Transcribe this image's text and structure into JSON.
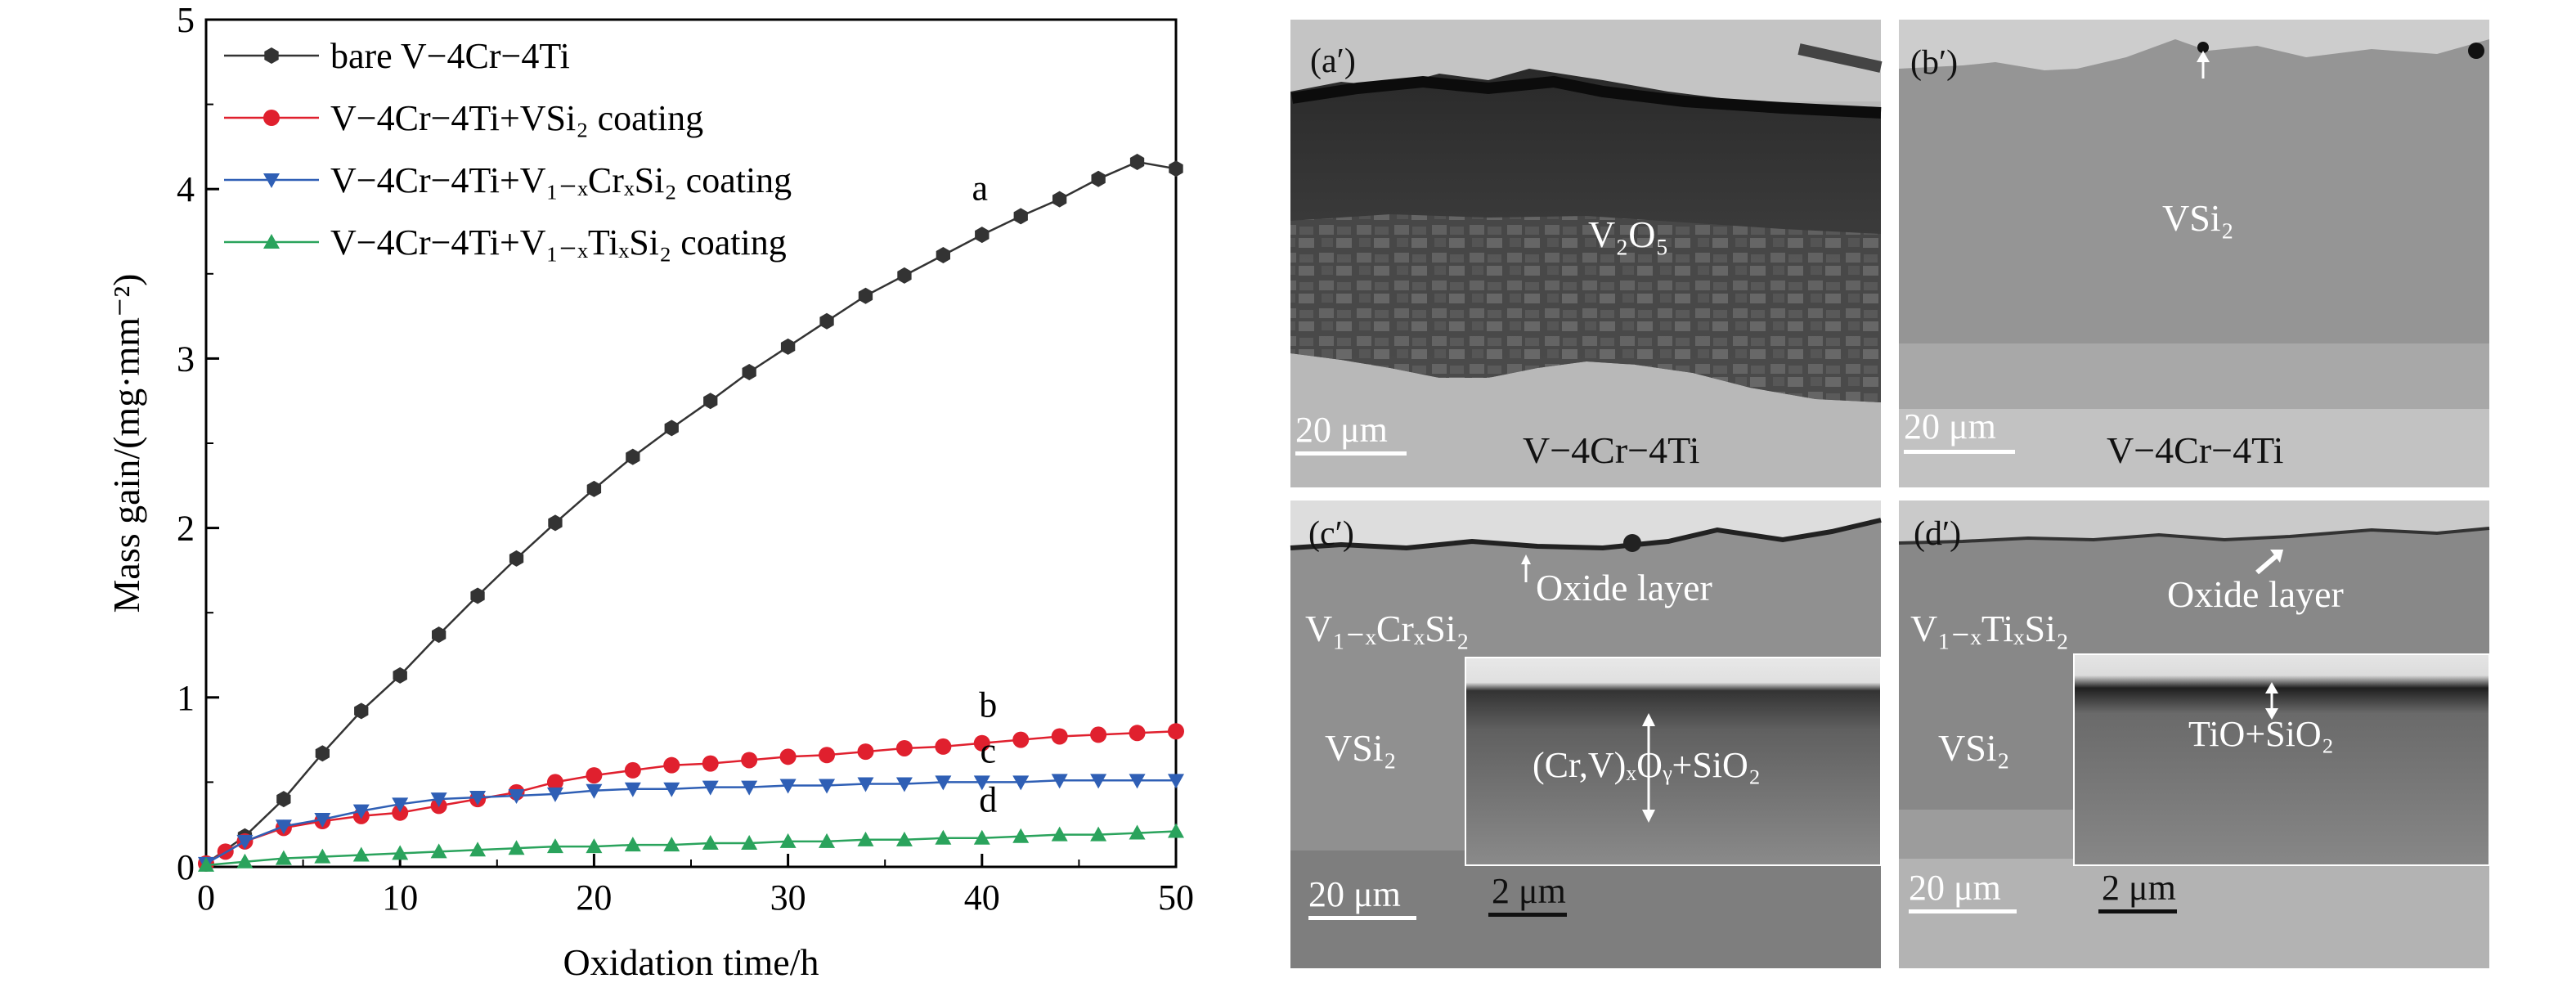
{
  "chart_data": {
    "type": "line",
    "xlabel": "Oxidation time/h",
    "ylabel": "Mass gain/(mg·mm⁻²)",
    "xlim": [
      0,
      50
    ],
    "ylim": [
      0,
      5
    ],
    "x_ticks": [
      "0",
      "10",
      "20",
      "30",
      "40",
      "50"
    ],
    "y_ticks": [
      "0",
      "1",
      "2",
      "3",
      "4",
      "5"
    ],
    "legend_position": "top-left",
    "series": [
      {
        "name": "bare V−4Cr−4Ti",
        "label": "a",
        "color": "#333333",
        "marker": "hexagon",
        "x": [
          0,
          2,
          4,
          6,
          8,
          10,
          12,
          14,
          16,
          18,
          20,
          22,
          24,
          26,
          28,
          30,
          32,
          34,
          36,
          38,
          40,
          42,
          44,
          46,
          48,
          50
        ],
        "y": [
          0.02,
          0.18,
          0.4,
          0.67,
          0.92,
          1.13,
          1.37,
          1.6,
          1.82,
          2.03,
          2.23,
          2.42,
          2.59,
          2.75,
          2.92,
          3.07,
          3.22,
          3.37,
          3.49,
          3.61,
          3.73,
          3.84,
          3.94,
          4.06,
          4.16,
          4.12
        ]
      },
      {
        "name": "V−4Cr−4Ti+VSi₂ coating",
        "label": "b",
        "color": "#e0202e",
        "marker": "circle",
        "x": [
          0,
          1,
          2,
          4,
          6,
          8,
          10,
          12,
          14,
          16,
          18,
          20,
          22,
          24,
          26,
          28,
          30,
          32,
          34,
          36,
          38,
          40,
          42,
          44,
          46,
          48,
          50
        ],
        "y": [
          0.02,
          0.09,
          0.15,
          0.23,
          0.27,
          0.3,
          0.32,
          0.36,
          0.4,
          0.44,
          0.5,
          0.54,
          0.57,
          0.6,
          0.61,
          0.63,
          0.65,
          0.66,
          0.68,
          0.7,
          0.71,
          0.73,
          0.75,
          0.77,
          0.78,
          0.79,
          0.8
        ]
      },
      {
        "name": "V−4Cr−4Ti+V₁₋ₓCrₓSi₂ coating",
        "label": "c",
        "color": "#2f5fb5",
        "marker": "triangle-down",
        "x": [
          0,
          2,
          4,
          6,
          8,
          10,
          12,
          14,
          16,
          18,
          20,
          22,
          24,
          26,
          28,
          30,
          32,
          34,
          36,
          38,
          40,
          42,
          44,
          46,
          48,
          50
        ],
        "y": [
          0.02,
          0.15,
          0.24,
          0.28,
          0.33,
          0.37,
          0.4,
          0.41,
          0.42,
          0.43,
          0.45,
          0.46,
          0.46,
          0.47,
          0.47,
          0.48,
          0.48,
          0.49,
          0.49,
          0.5,
          0.5,
          0.5,
          0.51,
          0.51,
          0.51,
          0.51
        ]
      },
      {
        "name": "V−4Cr−4Ti+V₁₋ₓTiₓSi₂ coating",
        "label": "d",
        "color": "#2aa35c",
        "marker": "triangle-up",
        "x": [
          0,
          2,
          4,
          6,
          8,
          10,
          12,
          14,
          16,
          18,
          20,
          22,
          24,
          26,
          28,
          30,
          32,
          34,
          36,
          38,
          40,
          42,
          44,
          46,
          48,
          50
        ],
        "y": [
          0.01,
          0.03,
          0.05,
          0.06,
          0.07,
          0.08,
          0.09,
          0.1,
          0.11,
          0.12,
          0.12,
          0.13,
          0.13,
          0.14,
          0.14,
          0.15,
          0.15,
          0.16,
          0.16,
          0.17,
          0.17,
          0.18,
          0.19,
          0.19,
          0.2,
          0.21
        ]
      }
    ]
  },
  "micrographs": [
    {
      "panel": "(a′)",
      "labels": [
        "V₂O₅",
        "V−4Cr−4Ti"
      ],
      "scale_bar": "20 μm"
    },
    {
      "panel": "(b′)",
      "labels": [
        "VSi₂",
        "V−4Cr−4Ti"
      ],
      "scale_bar": "20 μm"
    },
    {
      "panel": "(c′)",
      "labels": [
        "Oxide layer",
        "V₁₋ₓCrₓSi₂",
        "VSi₂",
        "(Cr,V)ₓOᵧ+SiO₂"
      ],
      "scale_bar": "20 μm",
      "inset_scale_bar": "2 μm"
    },
    {
      "panel": "(d′)",
      "labels": [
        "Oxide layer",
        "V₁₋ₓTiₓSi₂",
        "VSi₂",
        "TiO+SiO₂"
      ],
      "scale_bar": "20 μm",
      "inset_scale_bar": "2 μm"
    }
  ]
}
